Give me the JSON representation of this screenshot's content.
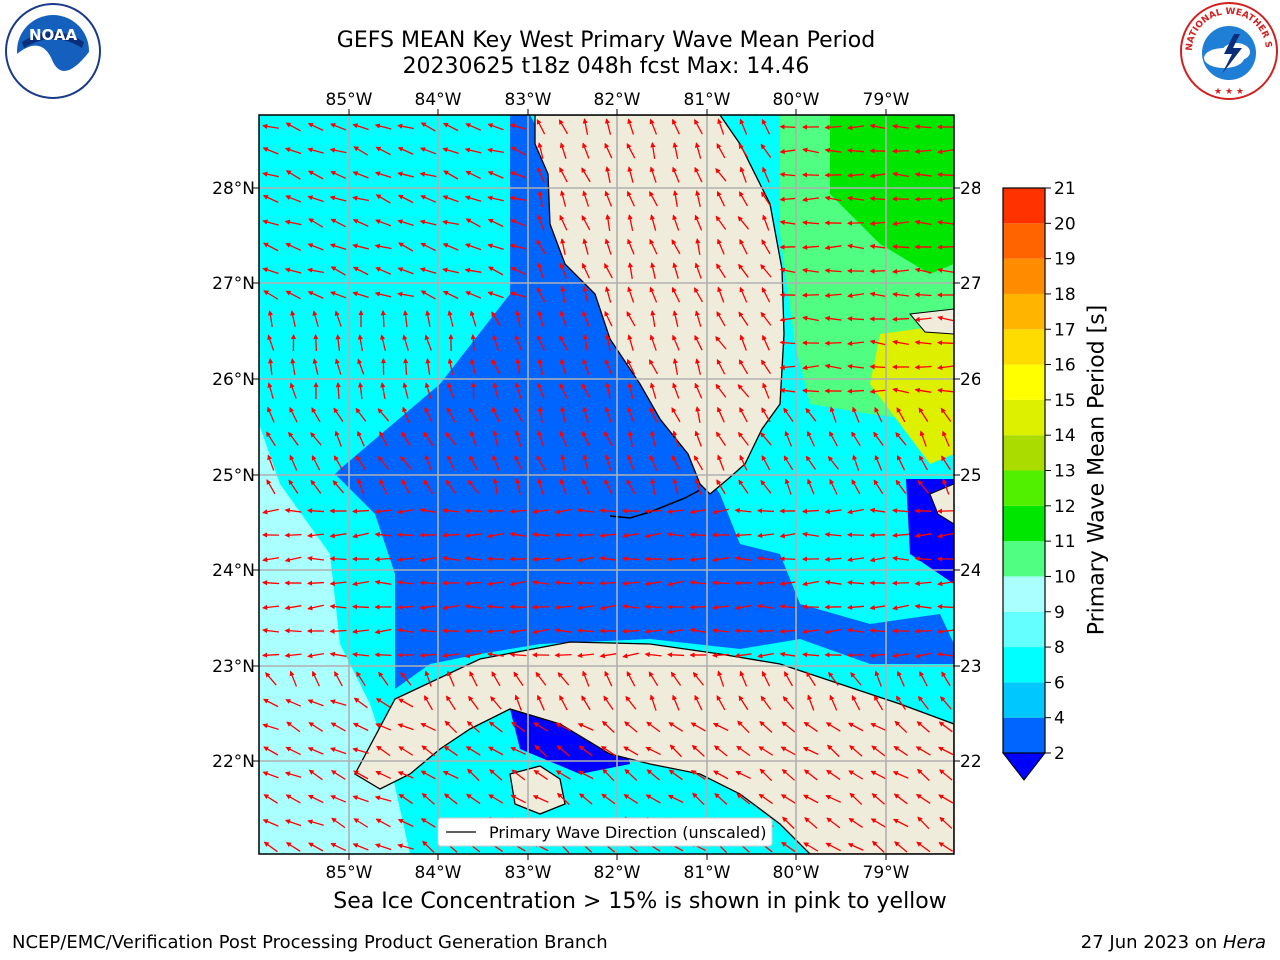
{
  "title": {
    "line1": "GEFS MEAN Key West Primary Wave Mean Period",
    "line2": "20230625 t18z 048h fcst   Max: 14.46"
  },
  "map": {
    "lon_ticks": [
      "85°W",
      "84°W",
      "83°W",
      "82°W",
      "81°W",
      "80°W",
      "79°W"
    ],
    "lat_ticks": [
      "28°N",
      "27°N",
      "26°N",
      "25°N",
      "24°N",
      "23°N",
      "22°N"
    ],
    "legend_label": "Primary Wave Direction (unscaled)",
    "land_color": "#efecdc",
    "arrow_color": "#ff0000",
    "grid": true
  },
  "colorbar": {
    "label": "Primary Wave Mean Period [s]",
    "ticks": [
      "2",
      "4",
      "6",
      "8",
      "9",
      "10",
      "11",
      "12",
      "13",
      "14",
      "15",
      "16",
      "17",
      "18",
      "19",
      "20",
      "21"
    ],
    "colors": [
      "#0064ff",
      "#00c8ff",
      "#00ffff",
      "#64ffff",
      "#aaffff",
      "#50ff82",
      "#00e600",
      "#50f000",
      "#aadc00",
      "#dcf000",
      "#ffff00",
      "#ffdc00",
      "#ffb400",
      "#ff8c00",
      "#ff6400",
      "#ff3200"
    ],
    "under_color": "#0000ff"
  },
  "note": "Sea Ice Concentration > 15% is shown in pink to yellow",
  "footer": {
    "left": "NCEP/EMC/Verification Post Processing Product Generation Branch",
    "date": "27 Jun 2023 on ",
    "host": "Hera"
  },
  "logos": {
    "noaa_text": "NOAA",
    "nws_text": "NATIONAL WEATHER SERVICE"
  }
}
